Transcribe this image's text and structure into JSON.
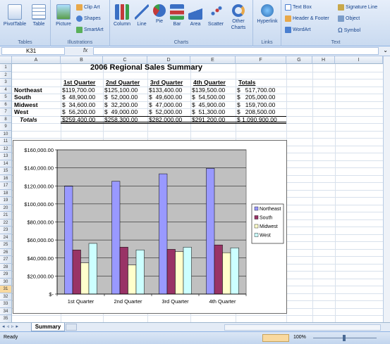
{
  "ribbon": {
    "groups": {
      "tables": "Tables",
      "illustrations": "Illustrations",
      "charts": "Charts",
      "links": "Links",
      "text": "Text"
    },
    "buttons": {
      "pivottable": "PivotTable",
      "table": "Table",
      "picture": "Picture",
      "clipart": "Clip Art",
      "shapes": "Shapes",
      "smartart": "SmartArt",
      "column": "Column",
      "line": "Line",
      "pie": "Pie",
      "bar": "Bar",
      "area": "Area",
      "scatter": "Scatter",
      "other_charts_1": "Other",
      "other_charts_2": "Charts",
      "hyperlink": "Hyperlink",
      "textbox": "Text Box",
      "header_footer": "Header & Footer",
      "wordart": "WordArt",
      "signature_line": "Signature Line",
      "object": "Object",
      "symbol": "Symbol"
    }
  },
  "formula_bar": {
    "name_box": "K31",
    "fx": "fx",
    "formula": ""
  },
  "columns": [
    "A",
    "B",
    "C",
    "D",
    "E",
    "F",
    "G",
    "H",
    "I"
  ],
  "rows": [
    "1",
    "2",
    "3",
    "4",
    "5",
    "6",
    "7",
    "8",
    "9",
    "10",
    "11",
    "12",
    "13",
    "14",
    "15",
    "16",
    "17",
    "18",
    "19",
    "20",
    "21",
    "22",
    "23",
    "24",
    "25",
    "26",
    "27",
    "28",
    "29",
    "30",
    "31",
    "32",
    "33",
    "34",
    "35"
  ],
  "sheet": {
    "title": "2006 Regional Sales Summary",
    "headers": [
      "1st Quarter",
      "2nd Quarter",
      "3rd Quarter",
      "4th Quarter",
      "Totals"
    ],
    "regions": [
      "Northeast",
      "South",
      "Midwest",
      "West"
    ],
    "totals_label": "Totals",
    "values": [
      [
        "$119,700.00",
        "$125,100.00",
        "$133,400.00",
        "$139,500.00",
        "$",
        "517,700.00"
      ],
      [
        "$",
        "48,900.00",
        "$",
        "52,000.00",
        "$",
        "49,600.00"
      ],
      [
        "$",
        "34,600.00",
        "$",
        "32,200.00",
        "$",
        "47,000.00"
      ],
      [
        "$",
        "56,200.00",
        "$",
        "49,000.00",
        "$",
        "52,000.00"
      ]
    ],
    "rows_text": [
      [
        "$119,700.00",
        "$125,100.00",
        "$133,400.00",
        "$139,500.00",
        "$   517,700.00"
      ],
      [
        "$  48,900.00",
        "$  52,000.00",
        "$  49,600.00",
        "$  54,500.00",
        "$   205,000.00"
      ],
      [
        "$  34,600.00",
        "$  32,200.00",
        "$  47,000.00",
        "$  45,900.00",
        "$   159,700.00"
      ],
      [
        "$  56,200.00",
        "$  49,000.00",
        "$  52,000.00",
        "$  51,300.00",
        "$   208,500.00"
      ],
      [
        "$259,400.00",
        "$258,300.00",
        "$282,000.00",
        "$291,200.00",
        "$ 1,090,900.00"
      ]
    ]
  },
  "chart_data": {
    "type": "bar",
    "categories": [
      "1st Quarter",
      "2nd Quarter",
      "3rd Quarter",
      "4th Quarter"
    ],
    "series": [
      {
        "name": "Northeast",
        "values": [
          119700,
          125100,
          133400,
          139500
        ],
        "color": "#9999ff"
      },
      {
        "name": "South",
        "values": [
          48900,
          52000,
          49600,
          54500
        ],
        "color": "#993366"
      },
      {
        "name": "Midwest",
        "values": [
          34600,
          32200,
          47000,
          45900
        ],
        "color": "#ffffcc"
      },
      {
        "name": "West",
        "values": [
          56200,
          49000,
          52000,
          51300
        ],
        "color": "#ccffff"
      }
    ],
    "yticks": [
      "$-",
      "$20,000.00",
      "$40,000.00",
      "$60,000.00",
      "$80,000.00",
      "$100,000.00",
      "$120,000.00",
      "$140,000.00",
      "$160,000.00"
    ],
    "ylim": [
      0,
      160000
    ],
    "grid": true,
    "legend": "right",
    "plot_bg": "#c0c0c0"
  },
  "tabs": {
    "sheet1": "Summary"
  },
  "status": {
    "ready": "Ready",
    "zoom": "100%"
  }
}
